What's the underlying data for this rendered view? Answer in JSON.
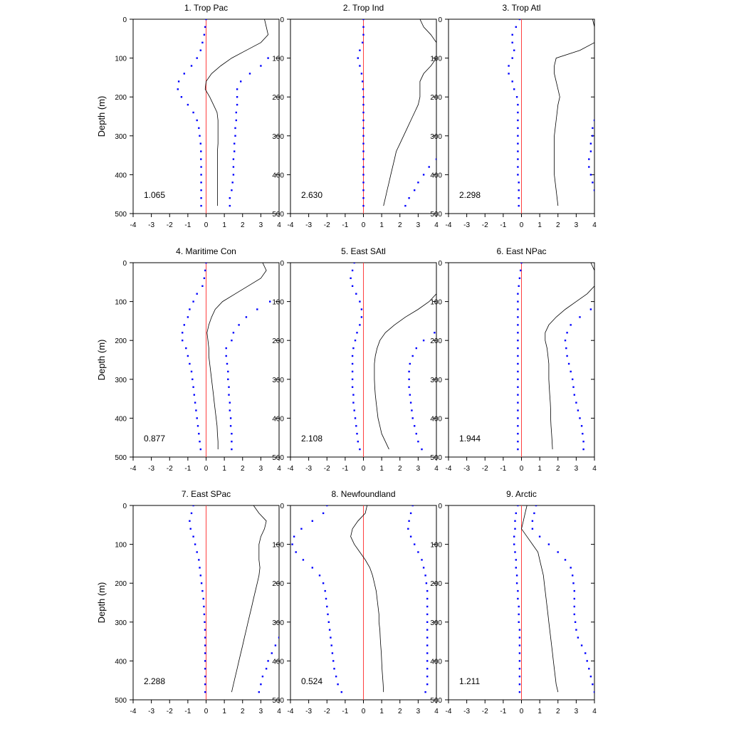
{
  "chart_data": [
    {
      "type": "line",
      "title": "1. Trop Pac",
      "ylabel": "Depth (m)",
      "xlim": [
        -4,
        4
      ],
      "ylim": [
        0,
        500
      ],
      "x_ticks": [
        "-4",
        "-3",
        "-2",
        "-1",
        "0",
        "1",
        "2",
        "3",
        "4"
      ],
      "y_ticks": [
        "0",
        "100",
        "200",
        "300",
        "400",
        "500"
      ],
      "annotation": "1.065",
      "depth": [
        0,
        20,
        40,
        60,
        80,
        100,
        120,
        140,
        160,
        180,
        200,
        220,
        240,
        260,
        280,
        300,
        320,
        340,
        360,
        380,
        400,
        420,
        440,
        460,
        480
      ],
      "line": [
        3.2,
        3.3,
        3.4,
        3.0,
        2.2,
        1.4,
        0.8,
        0.3,
        0.0,
        -0.05,
        0.2,
        0.4,
        0.6,
        0.65,
        0.65,
        0.65,
        0.65,
        0.62,
        0.62,
        0.62,
        0.62,
        0.62,
        0.62,
        0.62,
        0.62
      ],
      "dots_left": [
        0,
        -0.05,
        -0.1,
        -0.2,
        -0.3,
        -0.5,
        -0.8,
        -1.2,
        -1.5,
        -1.55,
        -1.35,
        -1.0,
        -0.7,
        -0.5,
        -0.4,
        -0.35,
        -0.3,
        -0.28,
        -0.28,
        -0.27,
        -0.27,
        -0.27,
        -0.27,
        -0.27,
        -0.27
      ],
      "dots_right": [
        null,
        null,
        null,
        null,
        null,
        3.4,
        3.0,
        2.4,
        1.9,
        1.7,
        1.7,
        1.7,
        1.65,
        1.65,
        1.6,
        1.6,
        1.55,
        1.55,
        1.5,
        1.5,
        1.5,
        1.45,
        1.4,
        1.3,
        1.3
      ]
    },
    {
      "type": "line",
      "title": "2. Trop Ind",
      "ylabel": "",
      "xlim": [
        -4,
        4
      ],
      "ylim": [
        0,
        500
      ],
      "x_ticks": [
        "-4",
        "-3",
        "-2",
        "-1",
        "0",
        "1",
        "2",
        "3",
        "4"
      ],
      "y_ticks": [
        "0",
        "100",
        "200",
        "300",
        "400",
        "500"
      ],
      "annotation": "2.630",
      "depth": [
        0,
        20,
        40,
        60,
        80,
        100,
        120,
        140,
        160,
        180,
        200,
        220,
        240,
        260,
        280,
        300,
        320,
        340,
        360,
        380,
        400,
        420,
        440,
        460,
        480
      ],
      "line": [
        3.1,
        3.3,
        3.7,
        4.0,
        4.0,
        4.0,
        3.7,
        3.3,
        3.1,
        3.1,
        3.1,
        3.0,
        2.8,
        2.6,
        2.4,
        2.2,
        2.0,
        1.8,
        1.7,
        1.6,
        1.5,
        1.4,
        1.3,
        1.2,
        1.1
      ],
      "dots_left": [
        0,
        0,
        0,
        -0.05,
        -0.2,
        -0.3,
        -0.2,
        -0.1,
        -0.05,
        -0.02,
        0,
        0,
        0,
        0,
        0,
        0,
        0,
        0,
        0,
        0,
        0,
        0,
        0,
        0,
        0
      ],
      "dots_right": [
        null,
        null,
        null,
        null,
        null,
        null,
        null,
        null,
        null,
        null,
        null,
        null,
        null,
        null,
        null,
        null,
        null,
        null,
        4.0,
        3.6,
        3.3,
        3.0,
        2.8,
        2.5,
        2.3
      ]
    },
    {
      "type": "line",
      "title": "3. Trop Atl",
      "ylabel": "",
      "xlim": [
        -4,
        4
      ],
      "ylim": [
        0,
        500
      ],
      "x_ticks": [
        "-4",
        "-3",
        "-2",
        "-1",
        "0",
        "1",
        "2",
        "3",
        "4"
      ],
      "y_ticks": [
        "0",
        "100",
        "200",
        "300",
        "400",
        "500"
      ],
      "annotation": "2.298",
      "depth": [
        0,
        20,
        40,
        60,
        80,
        100,
        120,
        140,
        160,
        180,
        200,
        220,
        240,
        260,
        280,
        300,
        320,
        340,
        360,
        380,
        400,
        420,
        440,
        460,
        480
      ],
      "line": [
        3.9,
        4.0,
        4.0,
        4.0,
        3.2,
        1.9,
        1.8,
        1.8,
        1.9,
        2.0,
        2.1,
        2.0,
        1.95,
        1.9,
        1.85,
        1.8,
        1.8,
        1.8,
        1.8,
        1.8,
        1.8,
        1.85,
        1.9,
        1.95,
        2.0
      ],
      "dots_left": [
        -0.1,
        -0.3,
        -0.5,
        -0.5,
        -0.4,
        -0.5,
        -0.7,
        -0.7,
        -0.5,
        -0.4,
        -0.25,
        -0.2,
        -0.2,
        -0.2,
        -0.2,
        -0.2,
        -0.2,
        -0.2,
        -0.2,
        -0.2,
        -0.2,
        -0.15,
        -0.15,
        -0.15,
        -0.15
      ],
      "dots_right": [
        null,
        null,
        null,
        null,
        null,
        null,
        null,
        null,
        null,
        null,
        null,
        null,
        null,
        4.0,
        3.9,
        3.9,
        3.8,
        3.8,
        3.7,
        3.7,
        3.8,
        3.9,
        4.0,
        null,
        null
      ]
    },
    {
      "type": "line",
      "title": "4. Maritime Con",
      "ylabel": "Depth (m)",
      "xlim": [
        -4,
        4
      ],
      "ylim": [
        0,
        500
      ],
      "x_ticks": [
        "-4",
        "-3",
        "-2",
        "-1",
        "0",
        "1",
        "2",
        "3",
        "4"
      ],
      "y_ticks": [
        "0",
        "100",
        "200",
        "300",
        "400",
        "500"
      ],
      "annotation": "0.877",
      "depth": [
        0,
        20,
        40,
        60,
        80,
        100,
        120,
        140,
        160,
        180,
        200,
        220,
        240,
        260,
        280,
        300,
        320,
        340,
        360,
        380,
        400,
        420,
        440,
        460,
        480
      ],
      "line": [
        3.1,
        3.3,
        3.0,
        2.3,
        1.6,
        0.9,
        0.5,
        0.3,
        0.15,
        0.05,
        0.1,
        0.15,
        0.15,
        0.2,
        0.25,
        0.3,
        0.35,
        0.4,
        0.45,
        0.5,
        0.55,
        0.6,
        0.62,
        0.65,
        0.65
      ],
      "dots_left": [
        0,
        -0.05,
        -0.1,
        -0.2,
        -0.5,
        -0.7,
        -0.9,
        -1.0,
        -1.2,
        -1.3,
        -1.3,
        -1.1,
        -1.0,
        -0.9,
        -0.8,
        -0.75,
        -0.7,
        -0.65,
        -0.6,
        -0.55,
        -0.5,
        -0.45,
        -0.4,
        -0.35,
        -0.3
      ],
      "dots_right": [
        null,
        null,
        null,
        null,
        null,
        3.5,
        2.8,
        2.2,
        1.8,
        1.5,
        1.4,
        1.1,
        1.1,
        1.15,
        1.2,
        1.2,
        1.25,
        1.25,
        1.3,
        1.3,
        1.35,
        1.35,
        1.4,
        1.4,
        1.4
      ]
    },
    {
      "type": "line",
      "title": "5. East SAtl",
      "ylabel": "",
      "xlim": [
        -4,
        4
      ],
      "ylim": [
        0,
        500
      ],
      "x_ticks": [
        "-4",
        "-3",
        "-2",
        "-1",
        "0",
        "1",
        "2",
        "3",
        "4"
      ],
      "y_ticks": [
        "0",
        "100",
        "200",
        "300",
        "400",
        "500"
      ],
      "annotation": "2.108",
      "depth": [
        0,
        20,
        40,
        60,
        80,
        100,
        120,
        140,
        160,
        180,
        200,
        220,
        240,
        260,
        280,
        300,
        320,
        340,
        360,
        380,
        400,
        420,
        440,
        460,
        480
      ],
      "line": [
        null,
        null,
        null,
        null,
        4.0,
        3.6,
        3.0,
        2.3,
        1.7,
        1.2,
        0.9,
        0.75,
        0.65,
        0.6,
        0.6,
        0.6,
        0.62,
        0.65,
        0.7,
        0.75,
        0.8,
        0.9,
        1.0,
        1.2,
        1.4
      ],
      "dots_left": [
        -0.5,
        -0.6,
        -0.7,
        -0.6,
        -0.4,
        -0.2,
        -0.1,
        -0.1,
        -0.2,
        -0.35,
        -0.45,
        -0.55,
        -0.6,
        -0.6,
        -0.6,
        -0.6,
        -0.6,
        -0.55,
        -0.55,
        -0.5,
        -0.45,
        -0.4,
        -0.35,
        -0.3,
        -0.2
      ],
      "dots_right": [
        null,
        null,
        null,
        null,
        null,
        null,
        null,
        null,
        null,
        3.9,
        3.3,
        2.9,
        2.7,
        2.55,
        2.5,
        2.5,
        2.5,
        2.55,
        2.6,
        2.65,
        2.7,
        2.8,
        2.9,
        3.0,
        3.2
      ]
    },
    {
      "type": "line",
      "title": "6. East NPac",
      "ylabel": "",
      "xlim": [
        -4,
        4
      ],
      "ylim": [
        0,
        500
      ],
      "x_ticks": [
        "-4",
        "-3",
        "-2",
        "-1",
        "0",
        "1",
        "2",
        "3",
        "4"
      ],
      "y_ticks": [
        "0",
        "100",
        "200",
        "300",
        "400",
        "500"
      ],
      "annotation": "1.944",
      "depth": [
        0,
        20,
        40,
        60,
        80,
        100,
        120,
        140,
        160,
        180,
        200,
        220,
        240,
        260,
        280,
        300,
        320,
        340,
        360,
        380,
        400,
        420,
        440,
        460,
        480
      ],
      "line": [
        3.8,
        4.0,
        4.0,
        4.0,
        3.6,
        3.0,
        2.4,
        1.9,
        1.5,
        1.3,
        1.3,
        1.4,
        1.45,
        1.5,
        1.5,
        1.5,
        1.52,
        1.55,
        1.58,
        1.6,
        1.6,
        1.62,
        1.65,
        1.68,
        1.7
      ],
      "dots_left": [
        0,
        -0.05,
        -0.1,
        -0.15,
        -0.2,
        -0.2,
        -0.2,
        -0.2,
        -0.2,
        -0.2,
        -0.2,
        -0.2,
        -0.2,
        -0.2,
        -0.2,
        -0.2,
        -0.2,
        -0.2,
        -0.2,
        -0.2,
        -0.2,
        -0.2,
        -0.2,
        -0.2,
        -0.2
      ],
      "dots_right": [
        null,
        null,
        null,
        null,
        null,
        null,
        3.8,
        3.2,
        2.7,
        2.5,
        2.4,
        2.45,
        2.5,
        2.6,
        2.7,
        2.8,
        2.85,
        2.9,
        3.0,
        3.1,
        3.2,
        3.3,
        3.35,
        3.4,
        3.4
      ]
    },
    {
      "type": "line",
      "title": "7. East SPac",
      "ylabel": "Depth (m)",
      "xlim": [
        -4,
        4
      ],
      "ylim": [
        0,
        500
      ],
      "x_ticks": [
        "-4",
        "-3",
        "-2",
        "-1",
        "0",
        "1",
        "2",
        "3",
        "4"
      ],
      "y_ticks": [
        "0",
        "100",
        "200",
        "300",
        "400",
        "500"
      ],
      "annotation": "2.288",
      "depth": [
        0,
        20,
        40,
        60,
        80,
        100,
        120,
        140,
        160,
        180,
        200,
        220,
        240,
        260,
        280,
        300,
        320,
        340,
        360,
        380,
        400,
        420,
        440,
        460,
        480
      ],
      "line": [
        2.6,
        2.9,
        3.3,
        3.2,
        3.0,
        2.9,
        2.9,
        2.9,
        2.95,
        2.9,
        2.8,
        2.7,
        2.6,
        2.5,
        2.4,
        2.3,
        2.2,
        2.1,
        2.0,
        1.9,
        1.8,
        1.7,
        1.6,
        1.5,
        1.4
      ],
      "dots_left": [
        -0.7,
        -0.8,
        -0.9,
        -0.85,
        -0.7,
        -0.6,
        -0.5,
        -0.4,
        -0.35,
        -0.3,
        -0.25,
        -0.2,
        -0.15,
        -0.12,
        -0.1,
        -0.08,
        -0.06,
        -0.05,
        -0.05,
        -0.05,
        -0.05,
        -0.05,
        -0.05,
        -0.05,
        -0.05
      ],
      "dots_right": [
        null,
        null,
        null,
        null,
        null,
        null,
        null,
        null,
        null,
        null,
        null,
        null,
        null,
        null,
        null,
        null,
        null,
        4.0,
        3.8,
        3.6,
        3.4,
        3.3,
        3.1,
        3.0,
        2.9
      ]
    },
    {
      "type": "line",
      "title": "8. Newfoundland",
      "ylabel": "",
      "xlim": [
        -4,
        4
      ],
      "ylim": [
        0,
        500
      ],
      "x_ticks": [
        "-4",
        "-3",
        "-2",
        "-1",
        "0",
        "1",
        "2",
        "3",
        "4"
      ],
      "y_ticks": [
        "0",
        "100",
        "200",
        "300",
        "400",
        "500"
      ],
      "annotation": "0.524",
      "depth": [
        0,
        20,
        40,
        60,
        80,
        100,
        120,
        140,
        160,
        180,
        200,
        220,
        240,
        260,
        280,
        300,
        320,
        340,
        360,
        380,
        400,
        420,
        440,
        460,
        480
      ],
      "line": [
        0.2,
        0.1,
        -0.3,
        -0.6,
        -0.7,
        -0.5,
        -0.2,
        0.1,
        0.35,
        0.5,
        0.6,
        0.7,
        0.75,
        0.8,
        0.85,
        0.85,
        0.9,
        0.92,
        0.95,
        0.98,
        1.0,
        1.02,
        1.05,
        1.08,
        1.1
      ],
      "dots_left": [
        -2.0,
        -2.2,
        -2.8,
        -3.4,
        -3.8,
        -3.9,
        -3.7,
        -3.3,
        -2.8,
        -2.4,
        -2.2,
        -2.1,
        -2.05,
        -2.0,
        -1.95,
        -1.9,
        -1.85,
        -1.8,
        -1.75,
        -1.7,
        -1.65,
        -1.6,
        -1.5,
        -1.4,
        -1.2
      ],
      "dots_right": [
        2.7,
        2.6,
        2.5,
        2.45,
        2.6,
        2.8,
        3.0,
        3.2,
        3.3,
        3.4,
        3.45,
        3.5,
        3.5,
        3.5,
        3.5,
        3.5,
        3.5,
        3.5,
        3.5,
        3.5,
        3.5,
        3.5,
        3.5,
        3.5,
        3.4
      ]
    },
    {
      "type": "line",
      "title": "9. Arctic",
      "ylabel": "",
      "xlim": [
        -4,
        4
      ],
      "ylim": [
        0,
        500
      ],
      "x_ticks": [
        "-4",
        "-3",
        "-2",
        "-1",
        "0",
        "1",
        "2",
        "3",
        "4"
      ],
      "y_ticks": [
        "0",
        "100",
        "200",
        "300",
        "400",
        "500"
      ],
      "annotation": "1.211",
      "depth": [
        0,
        20,
        40,
        60,
        80,
        100,
        120,
        140,
        160,
        180,
        200,
        220,
        240,
        260,
        280,
        300,
        320,
        340,
        360,
        380,
        400,
        420,
        440,
        460,
        480
      ],
      "line": [
        0.3,
        0.2,
        0.1,
        0.0,
        0.3,
        0.6,
        0.9,
        1.0,
        1.1,
        1.2,
        1.25,
        1.3,
        1.35,
        1.4,
        1.45,
        1.5,
        1.55,
        1.6,
        1.65,
        1.7,
        1.75,
        1.8,
        1.85,
        1.9,
        2.0
      ],
      "dots_left": [
        -0.2,
        -0.3,
        -0.35,
        -0.35,
        -0.4,
        -0.4,
        -0.35,
        -0.3,
        -0.3,
        -0.25,
        -0.25,
        -0.2,
        -0.2,
        -0.15,
        -0.15,
        -0.15,
        -0.1,
        -0.1,
        -0.1,
        -0.1,
        -0.1,
        -0.1,
        -0.1,
        -0.1,
        -0.1
      ],
      "dots_right": [
        0.8,
        0.7,
        0.6,
        0.6,
        1.0,
        1.5,
        2.0,
        2.4,
        2.7,
        2.8,
        2.85,
        2.9,
        2.9,
        2.9,
        2.9,
        2.95,
        3.0,
        3.1,
        3.3,
        3.5,
        3.6,
        3.7,
        3.8,
        3.9,
        4.0
      ]
    }
  ]
}
